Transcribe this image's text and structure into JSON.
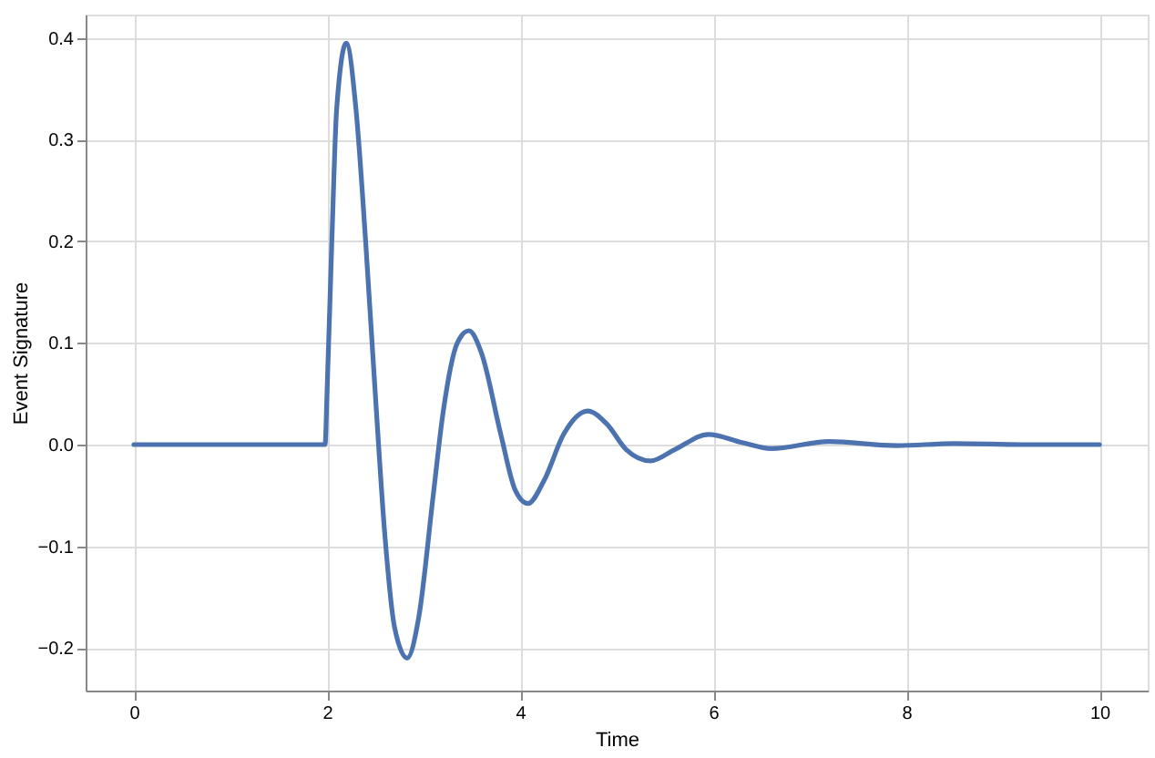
{
  "chart_data": {
    "type": "line",
    "xlabel": "Time",
    "ylabel": "Event Signature",
    "series": [
      {
        "color": "#4c72b0",
        "x": [
          0,
          1.98,
          2.0,
          2.05,
          2.1,
          2.2,
          2.3,
          2.4,
          2.5,
          2.6,
          2.7,
          2.83,
          2.95,
          3.1,
          3.2,
          3.35,
          3.47,
          3.6,
          3.8,
          3.95,
          4.08,
          4.25,
          4.45,
          4.7,
          4.9,
          5.1,
          5.35,
          5.6,
          5.95,
          6.3,
          6.6,
          7.2,
          7.9,
          8.5,
          9.2,
          10
        ],
        "values": [
          0,
          0,
          0.05,
          0.2,
          0.33,
          0.395,
          0.33,
          0.2,
          0.05,
          -0.09,
          -0.18,
          -0.21,
          -0.17,
          -0.05,
          0.03,
          0.1,
          0.112,
          0.09,
          0.01,
          -0.045,
          -0.058,
          -0.035,
          0.01,
          0.033,
          0.02,
          -0.005,
          -0.016,
          -0.005,
          0.01,
          0.002,
          -0.004,
          0.003,
          -0.001,
          0.001,
          0,
          0
        ]
      }
    ],
    "xlim": [
      -0.5,
      10.5
    ],
    "xticks": [
      0,
      2,
      4,
      6,
      8,
      10
    ],
    "ylim": [
      -0.242,
      0.423
    ],
    "yticks": [
      -0.2,
      -0.1,
      {
        "value": 0,
        "label": "0.0"
      },
      0.1,
      0.2,
      0.3,
      0.4
    ],
    "grid": true,
    "line_style": "solid",
    "marker": "none"
  }
}
